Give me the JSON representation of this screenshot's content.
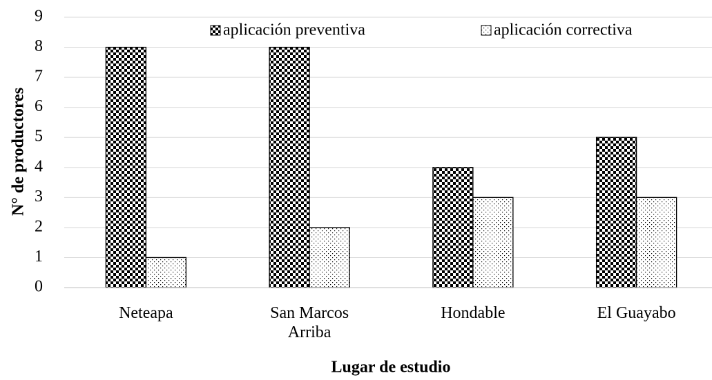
{
  "chart_data": {
    "type": "bar",
    "categories": [
      "Neteapa",
      "San Marcos Arriba",
      "Hondable",
      "El Guayabo"
    ],
    "series": [
      {
        "name": "aplicación preventiva",
        "color": "#000000",
        "values": [
          8,
          8,
          4,
          5
        ]
      },
      {
        "name": "aplicación correctiva",
        "color": "#000000",
        "values": [
          1,
          2,
          3,
          3
        ]
      }
    ],
    "xlabel": "Lugar de estudio",
    "ylabel": "N° de productores",
    "ylim": [
      0,
      9
    ],
    "yticks": [
      0,
      1,
      2,
      3,
      4,
      5,
      6,
      7,
      8,
      9
    ],
    "grid": true,
    "legend": "top"
  }
}
